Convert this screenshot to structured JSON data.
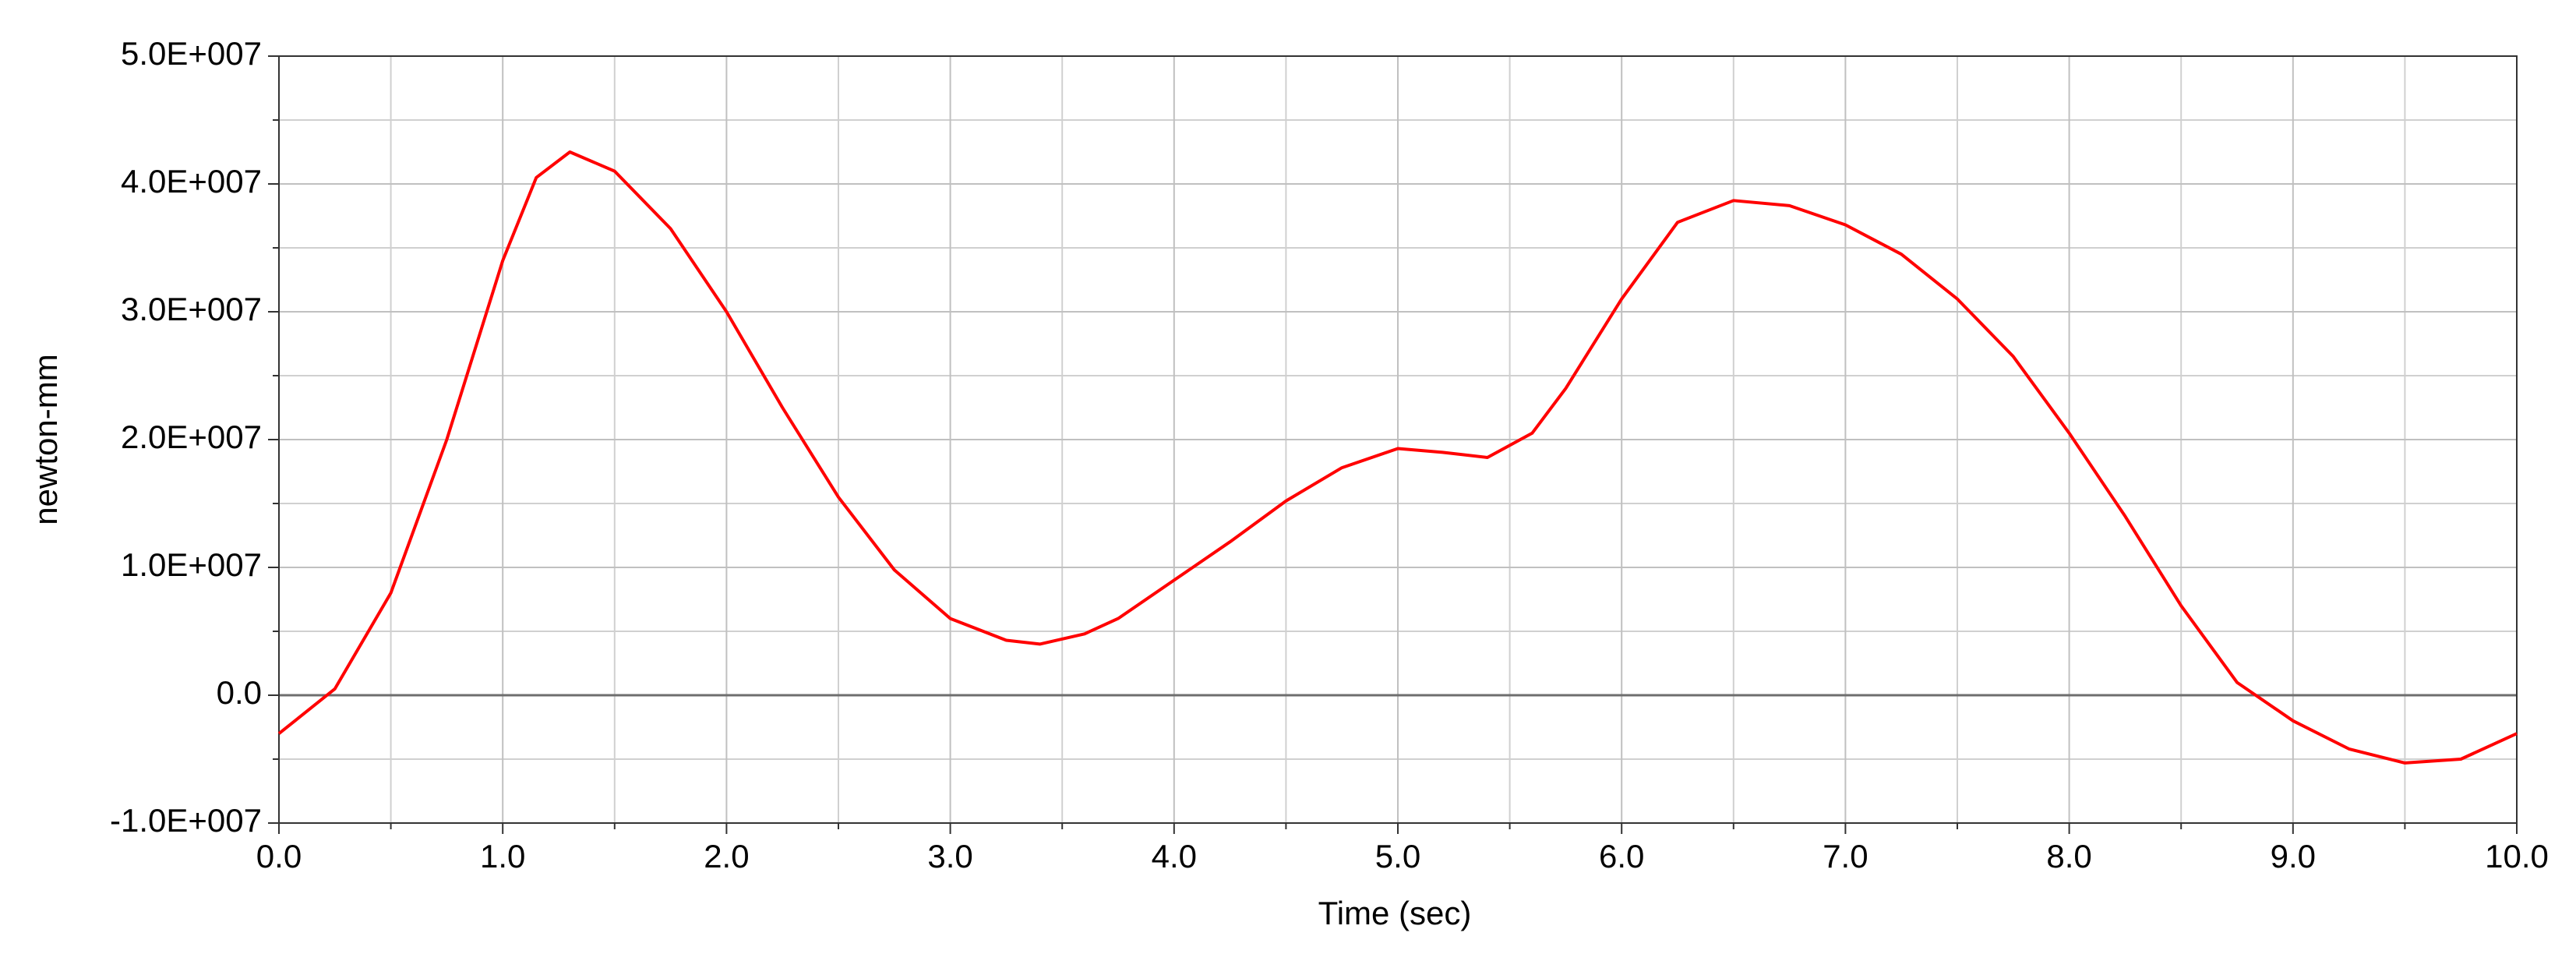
{
  "chart_data": {
    "type": "line",
    "xlabel": "Time (sec)",
    "ylabel": "newton-mm",
    "xlim": [
      0,
      10
    ],
    "ylim": [
      -10000000,
      50000000
    ],
    "xticks": [
      {
        "value": 0,
        "label": "0.0"
      },
      {
        "value": 1,
        "label": "1.0"
      },
      {
        "value": 2,
        "label": "2.0"
      },
      {
        "value": 3,
        "label": "3.0"
      },
      {
        "value": 4,
        "label": "4.0"
      },
      {
        "value": 5,
        "label": "5.0"
      },
      {
        "value": 6,
        "label": "6.0"
      },
      {
        "value": 7,
        "label": "7.0"
      },
      {
        "value": 8,
        "label": "8.0"
      },
      {
        "value": 9,
        "label": "9.0"
      },
      {
        "value": 10,
        "label": "10.0"
      }
    ],
    "yticks": [
      {
        "value": -10000000,
        "label": "-1.0E+007"
      },
      {
        "value": 0,
        "label": "0.0"
      },
      {
        "value": 10000000,
        "label": "1.0E+007"
      },
      {
        "value": 20000000,
        "label": "2.0E+007"
      },
      {
        "value": 30000000,
        "label": "3.0E+007"
      },
      {
        "value": 40000000,
        "label": "4.0E+007"
      },
      {
        "value": 50000000,
        "label": "5.0E+007"
      }
    ],
    "grid": true,
    "minor_grid": true,
    "x": [
      0,
      0.25,
      0.5,
      0.75,
      1,
      1.15,
      1.3,
      1.5,
      1.75,
      2,
      2.25,
      2.5,
      2.75,
      3,
      3.25,
      3.4,
      3.6,
      3.75,
      4,
      4.25,
      4.5,
      4.75,
      5,
      5.2,
      5.4,
      5.6,
      5.75,
      6,
      6.25,
      6.5,
      6.75,
      7,
      7.25,
      7.5,
      7.75,
      8,
      8.25,
      8.5,
      8.75,
      9,
      9.25,
      9.5,
      9.75,
      10
    ],
    "series": [
      {
        "color": "#ff0000",
        "values": [
          -3000000,
          500000,
          8000000,
          20000000,
          34000000,
          40500000,
          42500000,
          41000000,
          36500000,
          30000000,
          22500000,
          15500000,
          9800000,
          6000000,
          4300000,
          4000000,
          4800000,
          6000000,
          9000000,
          12000000,
          15200000,
          17800000,
          19300000,
          19000000,
          18600000,
          20500000,
          24000000,
          31000000,
          37000000,
          38700000,
          38300000,
          36800000,
          34500000,
          31000000,
          26500000,
          20500000,
          14000000,
          7000000,
          1000000,
          -2000000,
          -4200000,
          -5300000,
          -5000000,
          -3000000
        ]
      }
    ]
  }
}
